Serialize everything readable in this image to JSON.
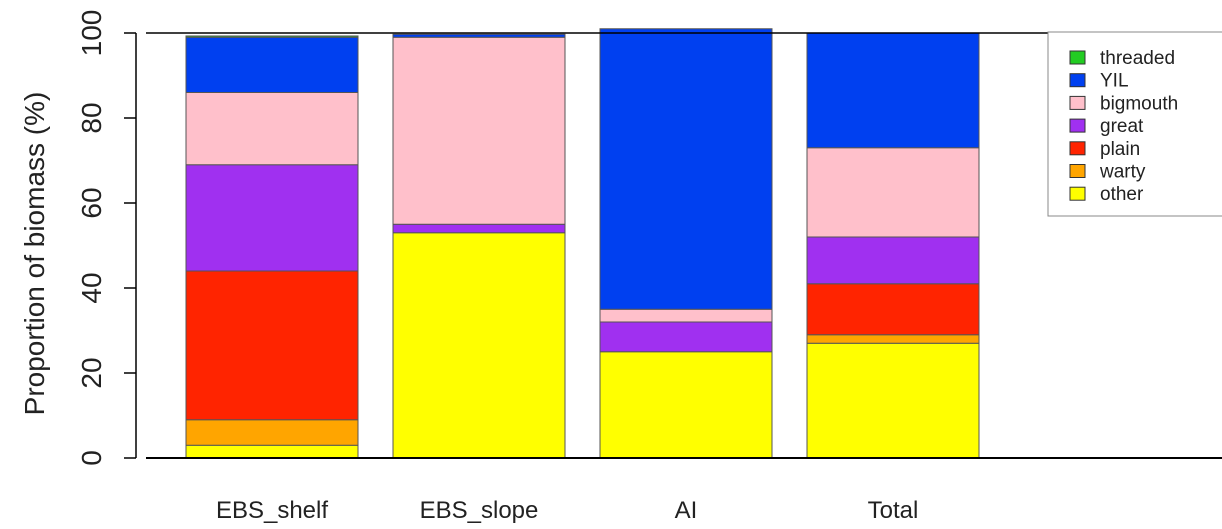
{
  "chart_data": {
    "type": "bar",
    "stacked": true,
    "title": "",
    "xlabel": "",
    "ylabel": "Proportion of biomass (%)",
    "ylim": [
      0,
      100
    ],
    "yticks": [
      "0",
      "20",
      "40",
      "60",
      "80",
      "100"
    ],
    "grid": false,
    "legend_position": "top-right",
    "categories": [
      "EBS_shelf",
      "EBS_slope",
      "AI",
      "Total",
      ""
    ],
    "series": [
      {
        "name": "other",
        "color": "#FFFF00",
        "values": [
          3,
          53,
          25,
          27,
          0
        ]
      },
      {
        "name": "warty",
        "color": "#FFA500",
        "values": [
          6,
          0,
          0,
          2,
          0
        ]
      },
      {
        "name": "plain",
        "color": "#FF2400",
        "values": [
          35,
          0,
          0,
          12,
          0
        ]
      },
      {
        "name": "great",
        "color": "#A030F0",
        "values": [
          25,
          2,
          7,
          11,
          0
        ]
      },
      {
        "name": "bigmouth",
        "color": "#FFC0CB",
        "values": [
          17,
          44,
          3,
          21,
          0
        ]
      },
      {
        "name": "YIL",
        "color": "#0040F0",
        "values": [
          13,
          0.7,
          66,
          27,
          0
        ]
      },
      {
        "name": "threaded",
        "color": "#22CC22",
        "values": [
          0.3,
          0,
          0,
          0,
          0
        ]
      }
    ],
    "legend_order": [
      "threaded",
      "YIL",
      "bigmouth",
      "great",
      "plain",
      "warty",
      "other"
    ]
  }
}
